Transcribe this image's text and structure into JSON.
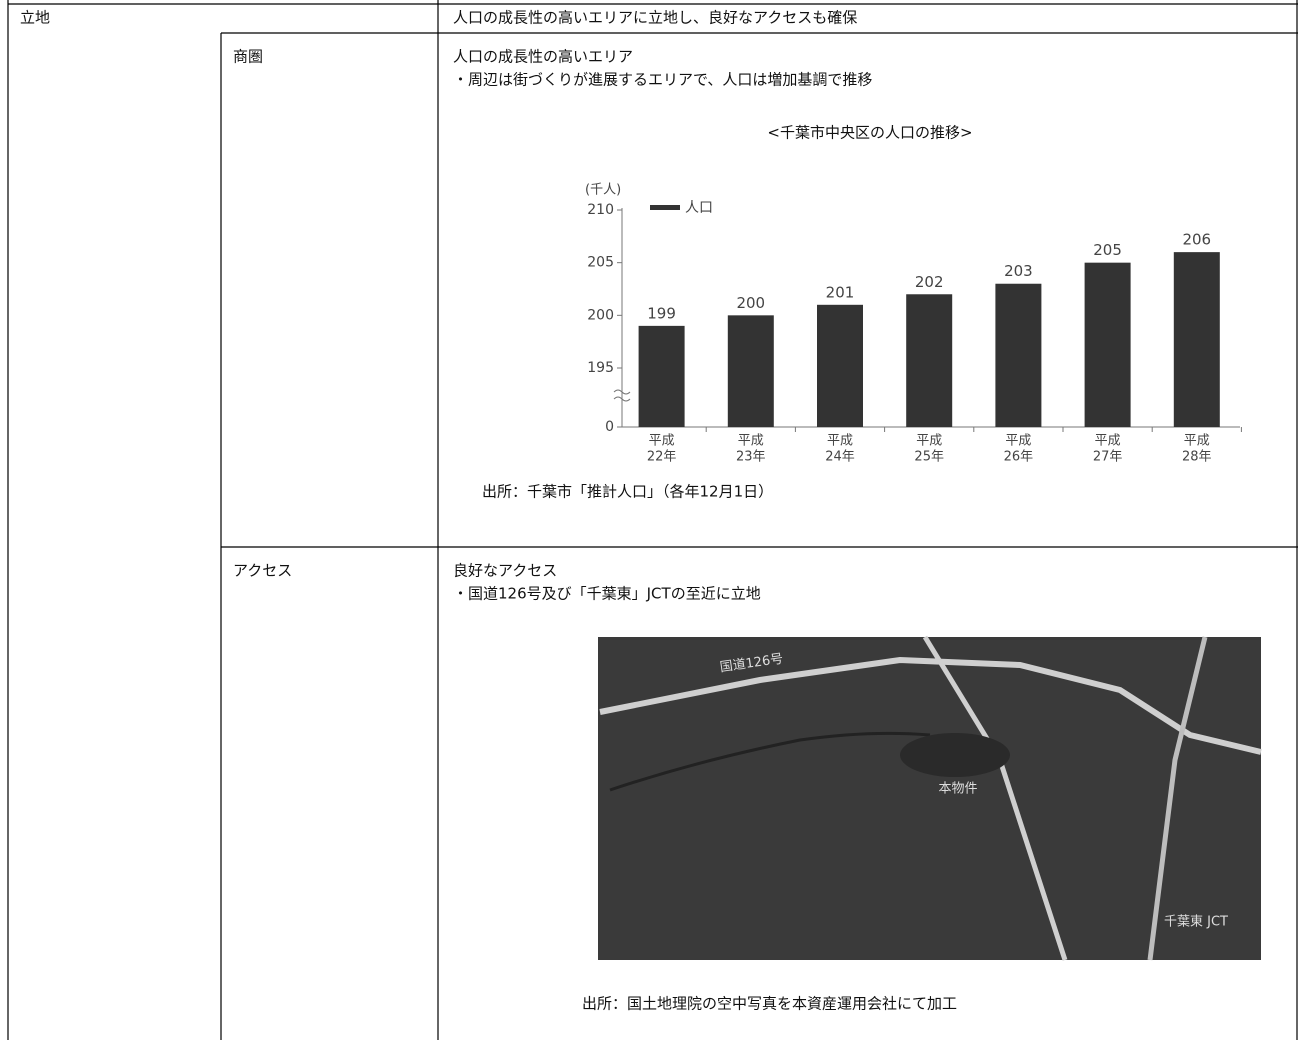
{
  "section": {
    "label": "立地",
    "summary": "人口の成長性の高いエリアに立地し、良好なアクセスも確保"
  },
  "trade_area": {
    "label": "商圏",
    "heading": "人口の成長性の高いエリア",
    "bullet": "・周辺は街づくりが進展するエリアで、人口は増加基調で推移",
    "source": "出所：千葉市「推計人口」（各年12月1日）"
  },
  "chart_data": {
    "type": "bar",
    "title": "<千葉市中央区の人口の推移>",
    "y_label": "(千人)",
    "categories": [
      [
        "平成",
        "22年"
      ],
      [
        "平成",
        "23年"
      ],
      [
        "平成",
        "24年"
      ],
      [
        "平成",
        "25年"
      ],
      [
        "平成",
        "26年"
      ],
      [
        "平成",
        "27年"
      ],
      [
        "平成",
        "28年"
      ]
    ],
    "series": [
      {
        "name": "人口",
        "color": "#333333",
        "values": [
          199,
          200,
          201,
          202,
          203,
          205,
          206
        ]
      }
    ],
    "ylim": [
      0,
      210
    ],
    "yticks": [
      0,
      195,
      200,
      205,
      210
    ],
    "axis_break": [
      0,
      195
    ],
    "grid": false,
    "legend": "top-left"
  },
  "access": {
    "label": "アクセス",
    "heading": "良好なアクセス",
    "bullet": "・国道126号及び「千葉東」JCTの至近に立地",
    "photo_labels": [
      "国道126号",
      "本物件",
      "千葉東 JCT"
    ],
    "source": "出所：国土地理院の空中写真を本資産運用会社にて加工"
  }
}
